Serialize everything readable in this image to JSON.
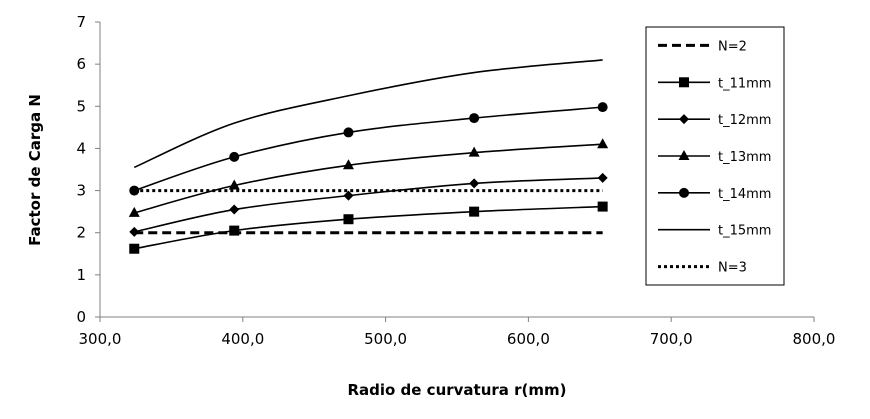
{
  "chart_data": {
    "type": "line",
    "title": "",
    "xlabel": "Radio de curvatura r(mm)",
    "ylabel": "Factor de Carga N",
    "xlim": [
      300,
      800
    ],
    "ylim": [
      0,
      7
    ],
    "x_ticks": [
      300,
      400,
      500,
      600,
      700,
      800
    ],
    "x_tick_labels": [
      "300,0",
      "400,0",
      "500,0",
      "600,0",
      "700,0",
      "800,0"
    ],
    "y_ticks": [
      0,
      1,
      2,
      3,
      4,
      5,
      6,
      7
    ],
    "y_tick_labels": [
      "0",
      "1",
      "2",
      "3",
      "4",
      "5",
      "6",
      "7"
    ],
    "grid": false,
    "legend_position": "right",
    "series": [
      {
        "name": "N=2",
        "style": "dashed",
        "marker": "none",
        "color": "#000000",
        "x": [
          324,
          394,
          474,
          562,
          652
        ],
        "y": [
          2.0,
          2.0,
          2.0,
          2.0,
          2.0
        ]
      },
      {
        "name": "t_11mm",
        "style": "solid",
        "marker": "square",
        "color": "#000000",
        "x": [
          324,
          394,
          474,
          562,
          652
        ],
        "y": [
          1.62,
          2.05,
          2.32,
          2.5,
          2.62
        ]
      },
      {
        "name": "t_12mm",
        "style": "solid",
        "marker": "diamond",
        "color": "#000000",
        "x": [
          324,
          394,
          474,
          562,
          652
        ],
        "y": [
          2.02,
          2.55,
          2.88,
          3.17,
          3.3
        ]
      },
      {
        "name": "t_13mm",
        "style": "solid",
        "marker": "triangle",
        "color": "#000000",
        "x": [
          324,
          394,
          474,
          562,
          652
        ],
        "y": [
          2.47,
          3.12,
          3.6,
          3.9,
          4.1
        ]
      },
      {
        "name": "t_14mm",
        "style": "solid",
        "marker": "circle",
        "color": "#000000",
        "x": [
          324,
          394,
          474,
          562,
          652
        ],
        "y": [
          3.0,
          3.8,
          4.38,
          4.72,
          4.98
        ]
      },
      {
        "name": "t_15mm",
        "style": "solid",
        "marker": "none",
        "color": "#000000",
        "x": [
          324,
          394,
          474,
          562,
          652
        ],
        "y": [
          3.55,
          4.6,
          5.25,
          5.8,
          6.1
        ]
      },
      {
        "name": "N=3",
        "style": "dotted",
        "marker": "none",
        "color": "#000000",
        "x": [
          324,
          394,
          474,
          562,
          652
        ],
        "y": [
          3.0,
          3.0,
          3.0,
          3.0,
          3.0
        ]
      }
    ]
  }
}
